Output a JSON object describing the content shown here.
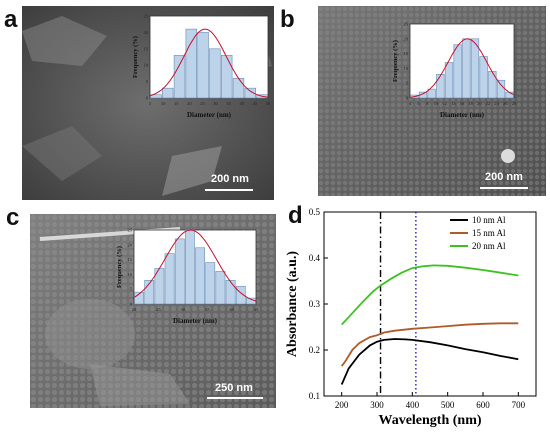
{
  "panels": {
    "a": {
      "letter": "a",
      "scale_label": "200 nm",
      "hist": {
        "xticks": [
          "5",
          "10",
          "15",
          "20",
          "25",
          "30",
          "35",
          "40",
          "45",
          "50"
        ],
        "yticks": [
          "0",
          "5",
          "10",
          "15",
          "20",
          "25"
        ],
        "xlabel": "Diameter (nm)",
        "ylabel": "Frequency (%)",
        "values": [
          1,
          3,
          13,
          21,
          20,
          15,
          13,
          6,
          3,
          1
        ],
        "ylim": [
          0,
          25
        ],
        "xlim": [
          5,
          50
        ]
      }
    },
    "b": {
      "letter": "b",
      "scale_label": "200 nm",
      "hist": {
        "xticks": [
          "4",
          "6",
          "8",
          "10",
          "12",
          "14",
          "16",
          "18",
          "20",
          "22",
          "24",
          "26",
          "28"
        ],
        "yticks": [
          "0",
          "5",
          "10",
          "15",
          "20",
          "25"
        ],
        "xlabel": "Diameter (nm)",
        "ylabel": "Frequency (%)",
        "values": [
          1,
          2,
          3,
          8,
          12,
          18,
          20,
          20,
          14,
          9,
          6,
          2
        ],
        "ylim": [
          0,
          25
        ],
        "xlim": [
          4,
          28
        ]
      }
    },
    "c": {
      "letter": "c",
      "scale_label": "250 nm",
      "hist": {
        "xticks": [
          "20",
          "25",
          "30",
          "35",
          "40",
          "45"
        ],
        "yticks": [
          "0",
          "5",
          "10",
          "15",
          "20",
          "25"
        ],
        "xlabel": "Diameter (nm)",
        "ylabel": "Frequency (%)",
        "values": [
          4,
          8,
          12,
          17,
          22,
          25,
          19,
          14,
          11,
          8,
          6,
          2
        ],
        "ylim": [
          0,
          25
        ],
        "xlim": [
          20,
          45
        ]
      }
    },
    "d": {
      "letter": "d"
    }
  },
  "chart_data": {
    "type": "line",
    "xlabel": "Wavelength (nm)",
    "ylabel": "Absorbance (a.u.)",
    "xlim": [
      150,
      750
    ],
    "ylim": [
      0.1,
      0.5
    ],
    "xticks": [
      200,
      300,
      400,
      500,
      600,
      700
    ],
    "yticks": [
      0.1,
      0.2,
      0.3,
      0.4,
      0.5
    ],
    "legend_position": "top-right",
    "vlines": [
      {
        "x": 310,
        "style": "dash-dot",
        "color": "#000000"
      },
      {
        "x": 410,
        "style": "dotted",
        "color": "#1f1fbf"
      }
    ],
    "series": [
      {
        "name": "10 nm Al",
        "color": "#000000",
        "x": [
          200,
          220,
          250,
          280,
          300,
          320,
          350,
          380,
          400,
          450,
          500,
          550,
          600,
          650,
          700
        ],
        "y": [
          0.125,
          0.16,
          0.19,
          0.21,
          0.218,
          0.222,
          0.224,
          0.223,
          0.222,
          0.217,
          0.21,
          0.202,
          0.195,
          0.187,
          0.18
        ]
      },
      {
        "name": "15 nm Al",
        "color": "#b05a2a",
        "x": [
          200,
          210,
          230,
          250,
          280,
          300,
          320,
          350,
          400,
          450,
          500,
          550,
          600,
          650,
          700
        ],
        "y": [
          0.165,
          0.175,
          0.2,
          0.215,
          0.228,
          0.232,
          0.238,
          0.242,
          0.246,
          0.249,
          0.252,
          0.255,
          0.257,
          0.258,
          0.258
        ]
      },
      {
        "name": "20 nm Al",
        "color": "#3cc21f",
        "x": [
          200,
          230,
          260,
          290,
          310,
          340,
          370,
          400,
          430,
          460,
          500,
          550,
          600,
          650,
          700
        ],
        "y": [
          0.255,
          0.28,
          0.305,
          0.328,
          0.34,
          0.355,
          0.368,
          0.378,
          0.382,
          0.384,
          0.383,
          0.379,
          0.374,
          0.368,
          0.362
        ]
      }
    ]
  }
}
